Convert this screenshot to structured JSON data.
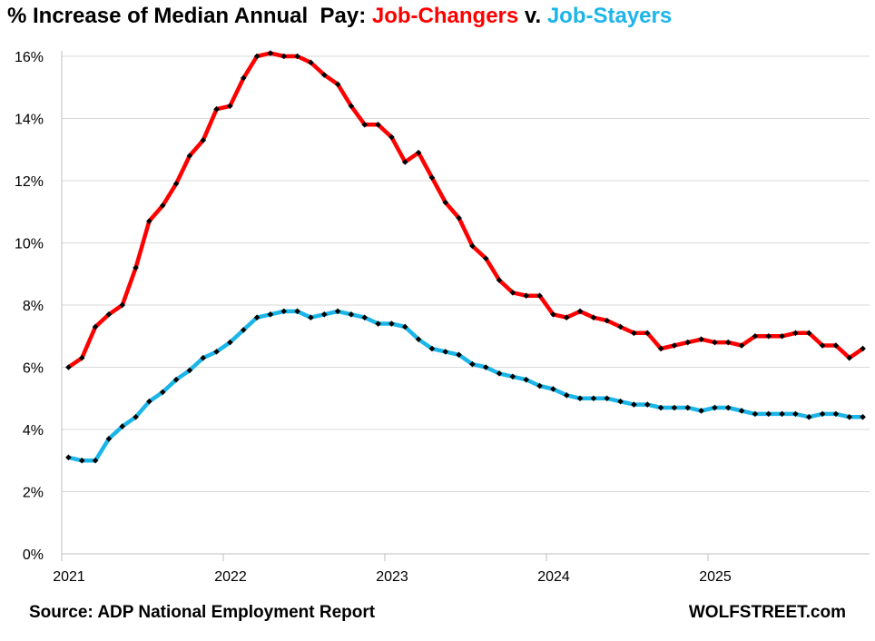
{
  "chart_data": {
    "type": "line",
    "title_parts": [
      "% Increase of Median Annual  Pay: ",
      "Job-Changers",
      " v. ",
      "Job-Stayers"
    ],
    "x_start": "2021-01",
    "x_end": "2025-12",
    "x_frequency": "monthly",
    "xtick_labels": [
      "2021",
      "2022",
      "2023",
      "2024",
      "2025"
    ],
    "ytick_labels": [
      "0%",
      "2%",
      "4%",
      "6%",
      "8%",
      "10%",
      "12%",
      "14%",
      "16%"
    ],
    "ylim": [
      0,
      16
    ],
    "grid": "horizontal",
    "colors": {
      "changers": "#ff0000",
      "stayers": "#1cb5e8",
      "markers": "#000000",
      "grid": "#d9d9d9"
    },
    "series": [
      {
        "name": "Job-Changers",
        "values": [
          6.0,
          6.3,
          7.3,
          7.7,
          8.0,
          9.2,
          10.7,
          11.2,
          11.9,
          12.8,
          13.3,
          14.3,
          14.4,
          15.3,
          16.0,
          16.1,
          16.0,
          16.0,
          15.8,
          15.4,
          15.1,
          14.4,
          13.8,
          13.8,
          13.4,
          12.6,
          12.9,
          12.1,
          11.3,
          10.8,
          9.9,
          9.5,
          8.8,
          8.4,
          8.3,
          8.3,
          7.7,
          7.6,
          7.8,
          7.6,
          7.5,
          7.3,
          7.1,
          7.1,
          6.6,
          6.7,
          6.8,
          6.9,
          6.8,
          6.8,
          6.7,
          7.0,
          7.0,
          7.0,
          7.1,
          7.1,
          6.7,
          6.7,
          6.3,
          6.6
        ]
      },
      {
        "name": "Job-Stayers",
        "values": [
          3.1,
          3.0,
          3.0,
          3.7,
          4.1,
          4.4,
          4.9,
          5.2,
          5.6,
          5.9,
          6.3,
          6.5,
          6.8,
          7.2,
          7.6,
          7.7,
          7.8,
          7.8,
          7.6,
          7.7,
          7.8,
          7.7,
          7.6,
          7.4,
          7.4,
          7.3,
          6.9,
          6.6,
          6.5,
          6.4,
          6.1,
          6.0,
          5.8,
          5.7,
          5.6,
          5.4,
          5.3,
          5.1,
          5.0,
          5.0,
          5.0,
          4.9,
          4.8,
          4.8,
          4.7,
          4.7,
          4.7,
          4.6,
          4.7,
          4.7,
          4.6,
          4.5,
          4.5,
          4.5,
          4.5,
          4.4,
          4.5,
          4.5,
          4.4,
          4.4
        ]
      }
    ]
  },
  "footer": {
    "source": "Source: ADP National Employment Report",
    "brand": "WOLFSTREET.com"
  }
}
